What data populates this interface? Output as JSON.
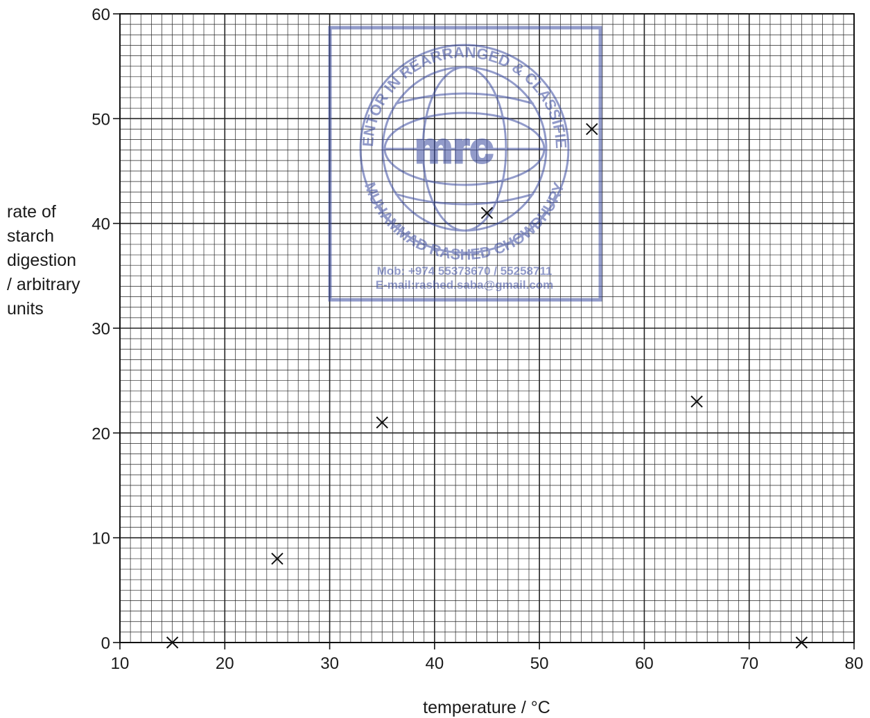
{
  "chart_data": {
    "type": "scatter",
    "title": "",
    "xlabel": "temperature / °C",
    "ylabel_lines": [
      "rate of",
      "starch",
      "digestion",
      "/ arbitrary",
      "units"
    ],
    "xlim": [
      10,
      80
    ],
    "ylim": [
      0,
      60
    ],
    "x_ticks": [
      "10",
      "20",
      "30",
      "40",
      "50",
      "60",
      "70",
      "80"
    ],
    "y_ticks": [
      "0",
      "10",
      "20",
      "30",
      "40",
      "50",
      "60"
    ],
    "grid": "fine graph-paper grid, minor division 1 °C by 1 unit, major every 10",
    "marker": "cross",
    "points": [
      {
        "x": 15,
        "y": 0
      },
      {
        "x": 25,
        "y": 8
      },
      {
        "x": 35,
        "y": 21
      },
      {
        "x": 45,
        "y": 41
      },
      {
        "x": 55,
        "y": 49
      },
      {
        "x": 65,
        "y": 23
      },
      {
        "x": 75,
        "y": 0
      }
    ]
  },
  "watermark": {
    "color": "#3a4aa0",
    "logo_text": "mrc",
    "ring_text_top": "MENTOR IN REARRANGED & CLASSIFIED",
    "ring_text_bottom": "MUHAMMAD RASHED CHOWDHURY",
    "phone": "Mob: +974 55373670 / 55258711",
    "email": "E-mail:rashed.saba@gmail.com"
  }
}
